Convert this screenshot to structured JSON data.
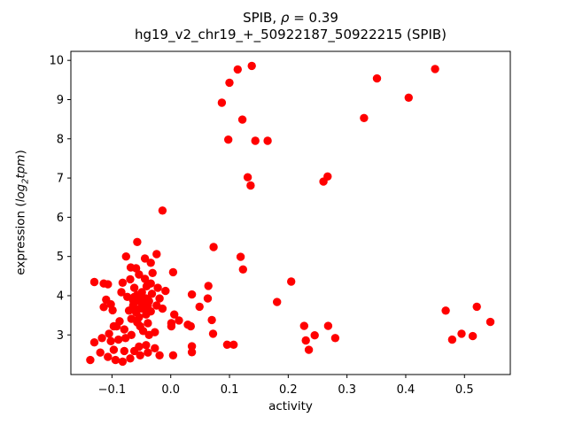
{
  "title": {
    "line1_prefix": "SPIB, ",
    "line1_rho": "ρ",
    "line1_suffix": " = 0.39",
    "line2": "hg19_v2_chr19_+_50922187_50922215 (SPIB)"
  },
  "axes": {
    "xlabel": "activity",
    "ylabel_prefix": "expression (",
    "ylabel_log": "log",
    "ylabel_sub": "2",
    "ylabel_tpm": "tpm",
    "ylabel_suffix": ")"
  },
  "chart_data": {
    "type": "scatter",
    "title": "SPIB, ρ = 0.39",
    "subtitle": "hg19_v2_chr19_+_50922187_50922215 (SPIB)",
    "xlabel": "activity",
    "ylabel": "expression (log2 tpm)",
    "marker_color": "#ff0000",
    "marker_style": "filled-circle",
    "grid": false,
    "legend": "none",
    "xlim": [
      -0.17,
      0.578
    ],
    "ylim": [
      1.99,
      10.23
    ],
    "xtick_values": [
      -0.1,
      0.0,
      0.1,
      0.2,
      0.3,
      0.4,
      0.5
    ],
    "xtick_labels": [
      "−0.1",
      "0.0",
      "0.1",
      "0.2",
      "0.3",
      "0.4",
      "0.5"
    ],
    "ytick_values": [
      3,
      4,
      5,
      6,
      7,
      8,
      9,
      10
    ],
    "ytick_labels": [
      "3",
      "4",
      "5",
      "6",
      "7",
      "8",
      "9",
      "10"
    ],
    "points": [
      [
        0.114,
        9.77
      ],
      [
        0.138,
        9.86
      ],
      [
        0.1,
        9.43
      ],
      [
        0.087,
        8.92
      ],
      [
        0.122,
        8.49
      ],
      [
        0.098,
        7.98
      ],
      [
        0.144,
        7.95
      ],
      [
        0.165,
        7.95
      ],
      [
        0.351,
        9.54
      ],
      [
        0.329,
        8.53
      ],
      [
        0.405,
        9.05
      ],
      [
        0.45,
        9.78
      ],
      [
        0.131,
        7.02
      ],
      [
        0.136,
        6.81
      ],
      [
        0.26,
        6.91
      ],
      [
        0.267,
        7.04
      ],
      [
        -0.014,
        6.17
      ],
      [
        -0.057,
        5.37
      ],
      [
        0.073,
        5.24
      ],
      [
        0.119,
        4.99
      ],
      [
        0.123,
        4.67
      ],
      [
        0.064,
        4.25
      ],
      [
        0.063,
        3.93
      ],
      [
        0.205,
        4.36
      ],
      [
        0.181,
        3.84
      ],
      [
        0.07,
        3.38
      ],
      [
        0.072,
        3.03
      ],
      [
        0.096,
        2.75
      ],
      [
        0.107,
        2.75
      ],
      [
        0.468,
        3.62
      ],
      [
        0.521,
        3.72
      ],
      [
        0.544,
        3.33
      ],
      [
        0.479,
        2.88
      ],
      [
        0.495,
        3.03
      ],
      [
        0.514,
        2.97
      ],
      [
        0.227,
        3.23
      ],
      [
        0.268,
        3.23
      ],
      [
        0.23,
        2.86
      ],
      [
        0.245,
        2.99
      ],
      [
        0.28,
        2.92
      ],
      [
        0.235,
        2.62
      ],
      [
        -0.076,
        5.0
      ],
      [
        -0.024,
        5.06
      ],
      [
        -0.044,
        4.95
      ],
      [
        -0.034,
        4.84
      ],
      [
        -0.068,
        4.72
      ],
      [
        -0.059,
        4.7
      ],
      [
        -0.031,
        4.58
      ],
      [
        0.004,
        4.6
      ],
      [
        -0.13,
        4.35
      ],
      [
        -0.114,
        4.31
      ],
      [
        -0.069,
        4.42
      ],
      [
        -0.107,
        4.29
      ],
      [
        -0.082,
        4.33
      ],
      [
        -0.054,
        4.54
      ],
      [
        -0.044,
        4.43
      ],
      [
        -0.041,
        4.24
      ],
      [
        -0.084,
        4.09
      ],
      [
        -0.074,
        3.97
      ],
      [
        -0.11,
        3.9
      ],
      [
        -0.102,
        3.78
      ],
      [
        -0.114,
        3.71
      ],
      [
        -0.099,
        3.63
      ],
      [
        -0.062,
        4.2
      ],
      [
        -0.049,
        4.09
      ],
      [
        -0.062,
        3.97
      ],
      [
        -0.054,
        3.86
      ],
      [
        -0.042,
        3.93
      ],
      [
        -0.064,
        3.75
      ],
      [
        -0.052,
        3.67
      ],
      [
        -0.039,
        3.75
      ],
      [
        -0.042,
        3.52
      ],
      [
        -0.054,
        3.45
      ],
      [
        -0.067,
        3.41
      ],
      [
        -0.039,
        3.3
      ],
      [
        -0.052,
        3.22
      ],
      [
        -0.034,
        4.31
      ],
      [
        -0.022,
        4.2
      ],
      [
        -0.009,
        4.12
      ],
      [
        -0.032,
        4.05
      ],
      [
        -0.019,
        3.93
      ],
      [
        -0.037,
        3.86
      ],
      [
        -0.024,
        3.75
      ],
      [
        -0.034,
        3.6
      ],
      [
        -0.014,
        3.67
      ],
      [
        0.006,
        3.52
      ],
      [
        0.014,
        3.37
      ],
      [
        0.001,
        3.3
      ],
      [
        0.029,
        3.26
      ],
      [
        0.036,
        4.03
      ],
      [
        0.049,
        3.72
      ],
      [
        -0.092,
        3.22
      ],
      [
        -0.079,
        3.14
      ],
      [
        -0.105,
        3.03
      ],
      [
        -0.117,
        2.92
      ],
      [
        -0.13,
        2.81
      ],
      [
        -0.102,
        2.84
      ],
      [
        -0.089,
        2.88
      ],
      [
        -0.077,
        2.92
      ],
      [
        -0.037,
        3.0
      ],
      [
        -0.027,
        3.07
      ],
      [
        0.001,
        3.22
      ],
      [
        0.034,
        3.22
      ],
      [
        -0.137,
        2.36
      ],
      [
        -0.12,
        2.55
      ],
      [
        -0.107,
        2.44
      ],
      [
        -0.094,
        2.36
      ],
      [
        -0.082,
        2.32
      ],
      [
        -0.069,
        2.4
      ],
      [
        -0.097,
        2.62
      ],
      [
        -0.079,
        2.59
      ],
      [
        -0.062,
        2.59
      ],
      [
        -0.052,
        2.48
      ],
      [
        -0.039,
        2.55
      ],
      [
        -0.054,
        2.7
      ],
      [
        -0.042,
        2.74
      ],
      [
        -0.027,
        2.66
      ],
      [
        -0.019,
        2.48
      ],
      [
        0.004,
        2.48
      ],
      [
        0.036,
        2.71
      ],
      [
        0.036,
        2.56
      ],
      [
        -0.057,
        4.02
      ],
      [
        -0.047,
        3.81
      ],
      [
        -0.059,
        3.58
      ],
      [
        -0.044,
        3.65
      ],
      [
        -0.071,
        3.62
      ],
      [
        -0.049,
        3.92
      ],
      [
        -0.064,
        3.88
      ],
      [
        -0.057,
        3.32
      ],
      [
        -0.047,
        3.1
      ],
      [
        -0.067,
        3.0
      ],
      [
        -0.087,
        3.35
      ],
      [
        -0.097,
        3.22
      ]
    ]
  }
}
